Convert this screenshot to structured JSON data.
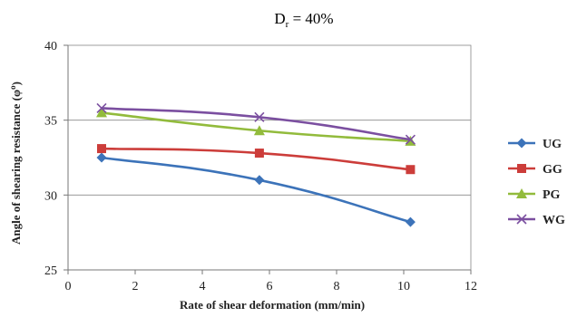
{
  "chart_data": {
    "type": "line",
    "title_main": "D",
    "title_sub": "r",
    "title_rest": " = 40%",
    "xlabel": "Rate of shear deformation (mm/min)",
    "ylabel": "Angle of shearing resistance (φ",
    "ylabel_sup": "o",
    "ylabel_end": ")",
    "xlim": [
      0,
      12
    ],
    "ylim": [
      25,
      40
    ],
    "xticks": [
      "0",
      "2",
      "4",
      "6",
      "8",
      "10",
      "12"
    ],
    "yticks": [
      "25",
      "30",
      "35",
      "40"
    ],
    "grid": "horizontal",
    "legend_position": "right",
    "series": [
      {
        "name": "UG",
        "color": "#3c73b9",
        "marker": "diamond",
        "x": [
          1,
          5.7,
          10.2
        ],
        "y": [
          32.5,
          31.0,
          28.2
        ]
      },
      {
        "name": "GG",
        "color": "#cc3d3a",
        "marker": "square",
        "x": [
          1,
          5.7,
          10.2
        ],
        "y": [
          33.1,
          32.8,
          31.7
        ]
      },
      {
        "name": "PG",
        "color": "#92bb3c",
        "marker": "triangle",
        "x": [
          1,
          5.7,
          10.2
        ],
        "y": [
          35.5,
          34.3,
          33.6
        ]
      },
      {
        "name": "WG",
        "color": "#7b4fa0",
        "marker": "x",
        "x": [
          1,
          5.7,
          10.2
        ],
        "y": [
          35.8,
          35.2,
          33.7
        ]
      }
    ]
  }
}
